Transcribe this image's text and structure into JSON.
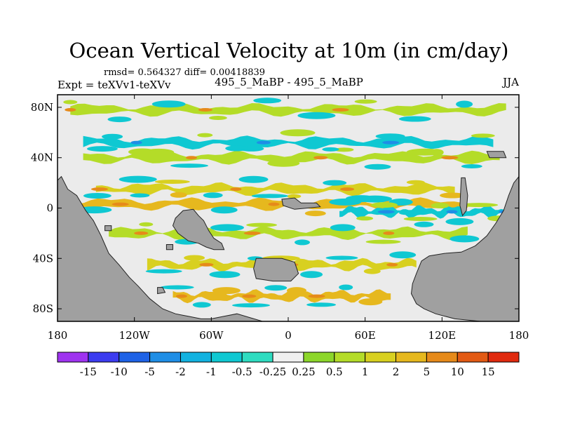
{
  "chart_data": {
    "type": "heatmap",
    "title": "Ocean Vertical Velocity at 10m (in cm/day)",
    "stats_line": "rmsd= 0.564327 diff= 0.00418839",
    "left_label": "Expt = teXVv1-teXVv",
    "center_label": "495_5_MaBP - 495_5_MaBP",
    "right_label": "JJA",
    "x_tick_labels": [
      "180",
      "120W",
      "60W",
      "0",
      "60E",
      "120E",
      "180"
    ],
    "x_tick_values": [
      -180,
      -120,
      -60,
      0,
      60,
      120,
      180
    ],
    "y_tick_labels": [
      "80N",
      "40N",
      "0",
      "40S",
      "80S"
    ],
    "y_tick_values": [
      80,
      40,
      0,
      -40,
      -80
    ],
    "xlim": [
      -180,
      180
    ],
    "ylim": [
      -90,
      90
    ],
    "contour_levels": [
      "-15",
      "-10",
      "-5",
      "-2",
      "-1",
      "-0.5",
      "-0.25",
      "0.25",
      "0.5",
      "1",
      "2",
      "5",
      "10",
      "15"
    ],
    "colorbar_colors": [
      "#9f33f0",
      "#3c3cf0",
      "#1e62e6",
      "#1f8ee6",
      "#12b2e0",
      "#0fc8d2",
      "#2edcc0",
      "#f0f0f0",
      "#8cd62a",
      "#b4dc28",
      "#d8d020",
      "#e6b81e",
      "#e68a1a",
      "#e25a14",
      "#e02a0e"
    ],
    "land_color": "#a0a0a0",
    "series": [
      {
        "name": "band_arctic",
        "lat": 78,
        "lon_start": -170,
        "lon_end": 170,
        "value": "0.5"
      },
      {
        "name": "band_subpolar_north",
        "lat": 52,
        "lon_start": -160,
        "lon_end": 160,
        "value": "-0.5"
      },
      {
        "name": "band_north_midlat",
        "lat": 40,
        "lon_start": -160,
        "lon_end": 165,
        "value": "0.5"
      },
      {
        "name": "band_north_tropics",
        "lat": 15,
        "lon_start": -150,
        "lon_end": 130,
        "value": "1"
      },
      {
        "name": "band_equatorial_upwelling",
        "lat": 3,
        "lon_start": -175,
        "lon_end": 140,
        "value": "2"
      },
      {
        "name": "band_equatorial_downwelling",
        "lat": -3,
        "lon_start": 40,
        "lon_end": 175,
        "value": "-0.5"
      },
      {
        "name": "band_south_tropics",
        "lat": -20,
        "lon_start": -140,
        "lon_end": 140,
        "value": "0.5"
      },
      {
        "name": "band_south_midlat",
        "lat": -45,
        "lon_start": -110,
        "lon_end": 100,
        "value": "1"
      },
      {
        "name": "band_southern_ocean",
        "lat": -70,
        "lon_start": -90,
        "lon_end": 80,
        "value": "2"
      }
    ]
  }
}
